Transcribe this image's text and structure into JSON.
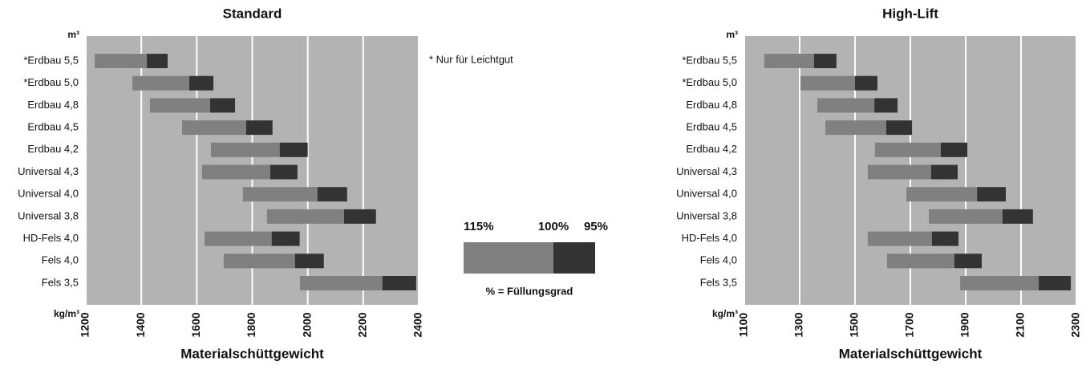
{
  "chart_data": [
    {
      "type": "range-bar",
      "title": "Standard",
      "ylabel": "m³",
      "xunit": "kg/m³",
      "xlabel": "Materialschüttgewicht",
      "categories": [
        "*Erdbau 5,5",
        "*Erdbau 5,0",
        "Erdbau 4,8",
        "Erdbau 4,5",
        "Erdbau 4,2",
        "Universal 4,3",
        "Universal 4,0",
        "Universal 3,8",
        "HD-Fels 4,0",
        "Fels 4,0",
        "Fels 3,5"
      ],
      "series": [
        {
          "name": "115%",
          "color": "#808080",
          "values": [
            1232,
            1368,
            1431,
            1547,
            1651,
            1619,
            1766,
            1853,
            1628,
            1697,
            1972
          ]
        },
        {
          "name": "100%",
          "color": "#333333",
          "values": [
            1420,
            1573,
            1648,
            1778,
            1899,
            1865,
            2035,
            2131,
            1870,
            1954,
            2269
          ]
        },
        {
          "name": "95%",
          "values": [
            1495,
            1660,
            1738,
            1873,
            2000,
            1963,
            2142,
            2246,
            1971,
            2058,
            2391
          ]
        }
      ],
      "xlim": [
        1200,
        2400
      ],
      "xticks": [
        1200,
        1400,
        1600,
        1800,
        2000,
        2200,
        2400
      ],
      "grid": true,
      "background": "#b3b3b3"
    },
    {
      "type": "range-bar",
      "title": "High-Lift",
      "ylabel": "m³",
      "xunit": "kg/m³",
      "xlabel": "Materialschüttgewicht",
      "categories": [
        "*Erdbau 5,5",
        "*Erdbau 5,0",
        "Erdbau 4,8",
        "Erdbau 4,5",
        "Erdbau 4,2",
        "Universal 4,3",
        "Universal 4,0",
        "Universal 3,8",
        "HD-Fels 4,0",
        "Fels 4,0",
        "Fels 3,5"
      ],
      "series": [
        {
          "name": "115%",
          "color": "#808080",
          "values": [
            1172,
            1303,
            1364,
            1393,
            1572,
            1546,
            1686,
            1767,
            1546,
            1616,
            1880
          ]
        },
        {
          "name": "100%",
          "color": "#333333",
          "values": [
            1352,
            1500,
            1570,
            1613,
            1810,
            1775,
            1941,
            2033,
            1778,
            1859,
            2164
          ]
        },
        {
          "name": "95%",
          "values": [
            1433,
            1581,
            1654,
            1706,
            1906,
            1871,
            2045,
            2143,
            1874,
            1958,
            2280
          ]
        }
      ],
      "xlim": [
        1100,
        2300
      ],
      "xticks": [
        1100,
        1300,
        1500,
        1700,
        1900,
        2100,
        2300
      ],
      "grid": true,
      "background": "#b3b3b3"
    }
  ],
  "note": "* Nur für Leichtgut",
  "legend_title": "% = Füllungsgrad"
}
